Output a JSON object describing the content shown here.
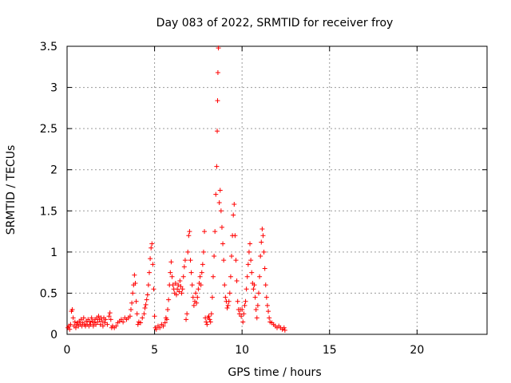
{
  "chart_data": {
    "type": "scatter",
    "title": "Day 083 of 2022, SRMTID for receiver froy",
    "xlabel": "GPS time / hours",
    "ylabel": "SRMTID / TECUs",
    "xlim": [
      0,
      24
    ],
    "ylim": [
      0,
      3.5
    ],
    "grid": true,
    "marker": "+",
    "x_ticks": [
      {
        "value": 0,
        "label": "0"
      },
      {
        "value": 5,
        "label": "5"
      },
      {
        "value": 10,
        "label": "10"
      },
      {
        "value": 15,
        "label": "15"
      },
      {
        "value": 20,
        "label": "20"
      }
    ],
    "y_ticks": [
      {
        "value": 0,
        "label": "0"
      },
      {
        "value": 0.5,
        "label": "0.5"
      },
      {
        "value": 1,
        "label": "1"
      },
      {
        "value": 1.5,
        "label": "1.5"
      },
      {
        "value": 2,
        "label": "2"
      },
      {
        "value": 2.5,
        "label": "2.5"
      },
      {
        "value": 3,
        "label": "3"
      },
      {
        "value": 3.5,
        "label": "3.5"
      }
    ],
    "series": [
      {
        "name": "SRMTID",
        "color": "#ff0000",
        "points": [
          [
            0.05,
            0.08
          ],
          [
            0.1,
            0.1
          ],
          [
            0.15,
            0.06
          ],
          [
            0.2,
            0.12
          ],
          [
            0.25,
            0.28
          ],
          [
            0.3,
            0.3
          ],
          [
            0.35,
            0.2
          ],
          [
            0.4,
            0.1
          ],
          [
            0.45,
            0.15
          ],
          [
            0.5,
            0.08
          ],
          [
            0.55,
            0.12
          ],
          [
            0.6,
            0.14
          ],
          [
            0.65,
            0.1
          ],
          [
            0.7,
            0.16
          ],
          [
            0.75,
            0.12
          ],
          [
            0.8,
            0.18
          ],
          [
            0.85,
            0.1
          ],
          [
            0.9,
            0.14
          ],
          [
            0.95,
            0.2
          ],
          [
            1.0,
            0.12
          ],
          [
            1.05,
            0.1
          ],
          [
            1.1,
            0.16
          ],
          [
            1.15,
            0.12
          ],
          [
            1.2,
            0.18
          ],
          [
            1.25,
            0.1
          ],
          [
            1.3,
            0.15
          ],
          [
            1.35,
            0.12
          ],
          [
            1.4,
            0.2
          ],
          [
            1.45,
            0.16
          ],
          [
            1.5,
            0.1
          ],
          [
            1.55,
            0.14
          ],
          [
            1.6,
            0.18
          ],
          [
            1.65,
            0.12
          ],
          [
            1.7,
            0.2
          ],
          [
            1.75,
            0.15
          ],
          [
            1.8,
            0.22
          ],
          [
            1.85,
            0.18
          ],
          [
            1.9,
            0.12
          ],
          [
            1.95,
            0.2
          ],
          [
            2.0,
            0.16
          ],
          [
            2.05,
            0.1
          ],
          [
            2.1,
            0.2
          ],
          [
            2.15,
            0.14
          ],
          [
            2.2,
            0.18
          ],
          [
            2.3,
            0.12
          ],
          [
            2.4,
            0.22
          ],
          [
            2.45,
            0.26
          ],
          [
            2.5,
            0.18
          ],
          [
            2.55,
            0.08
          ],
          [
            2.6,
            0.1
          ],
          [
            2.7,
            0.08
          ],
          [
            2.8,
            0.1
          ],
          [
            2.9,
            0.14
          ],
          [
            3.0,
            0.16
          ],
          [
            3.1,
            0.18
          ],
          [
            3.2,
            0.15
          ],
          [
            3.3,
            0.2
          ],
          [
            3.4,
            0.18
          ],
          [
            3.5,
            0.2
          ],
          [
            3.6,
            0.22
          ],
          [
            3.65,
            0.3
          ],
          [
            3.7,
            0.38
          ],
          [
            3.75,
            0.5
          ],
          [
            3.8,
            0.6
          ],
          [
            3.85,
            0.72
          ],
          [
            3.9,
            0.62
          ],
          [
            3.95,
            0.4
          ],
          [
            4.0,
            0.25
          ],
          [
            4.05,
            0.12
          ],
          [
            4.1,
            0.15
          ],
          [
            4.2,
            0.14
          ],
          [
            4.3,
            0.2
          ],
          [
            4.4,
            0.25
          ],
          [
            4.45,
            0.32
          ],
          [
            4.5,
            0.36
          ],
          [
            4.55,
            0.42
          ],
          [
            4.6,
            0.48
          ],
          [
            4.65,
            0.6
          ],
          [
            4.7,
            0.75
          ],
          [
            4.75,
            0.92
          ],
          [
            4.8,
            1.05
          ],
          [
            4.85,
            1.1
          ],
          [
            4.9,
            0.85
          ],
          [
            4.95,
            0.55
          ],
          [
            5.0,
            0.22
          ],
          [
            5.05,
            0.08
          ],
          [
            5.1,
            0.06
          ],
          [
            5.2,
            0.1
          ],
          [
            5.3,
            0.08
          ],
          [
            5.4,
            0.12
          ],
          [
            5.5,
            0.1
          ],
          [
            5.6,
            0.14
          ],
          [
            5.65,
            0.2
          ],
          [
            5.7,
            0.18
          ],
          [
            5.75,
            0.3
          ],
          [
            5.8,
            0.42
          ],
          [
            5.85,
            0.6
          ],
          [
            5.9,
            0.75
          ],
          [
            5.95,
            0.88
          ],
          [
            6.0,
            0.7
          ],
          [
            6.05,
            0.6
          ],
          [
            6.1,
            0.55
          ],
          [
            6.15,
            0.5
          ],
          [
            6.2,
            0.62
          ],
          [
            6.25,
            0.48
          ],
          [
            6.3,
            0.55
          ],
          [
            6.35,
            0.6
          ],
          [
            6.4,
            0.52
          ],
          [
            6.45,
            0.65
          ],
          [
            6.5,
            0.58
          ],
          [
            6.55,
            0.5
          ],
          [
            6.6,
            0.55
          ],
          [
            6.65,
            0.7
          ],
          [
            6.7,
            0.82
          ],
          [
            6.75,
            0.9
          ],
          [
            6.8,
            0.18
          ],
          [
            6.85,
            0.25
          ],
          [
            6.9,
            1.0
          ],
          [
            6.95,
            1.2
          ],
          [
            7.0,
            1.25
          ],
          [
            7.05,
            0.9
          ],
          [
            7.1,
            0.75
          ],
          [
            7.15,
            0.6
          ],
          [
            7.2,
            0.45
          ],
          [
            7.25,
            0.35
          ],
          [
            7.3,
            0.4
          ],
          [
            7.35,
            0.5
          ],
          [
            7.4,
            0.38
          ],
          [
            7.45,
            0.45
          ],
          [
            7.5,
            0.55
          ],
          [
            7.55,
            0.62
          ],
          [
            7.6,
            0.7
          ],
          [
            7.65,
            0.6
          ],
          [
            7.7,
            0.75
          ],
          [
            7.75,
            0.85
          ],
          [
            7.8,
            1.0
          ],
          [
            7.85,
            1.25
          ],
          [
            7.9,
            0.2
          ],
          [
            7.95,
            0.15
          ],
          [
            8.0,
            0.12
          ],
          [
            8.05,
            0.2
          ],
          [
            8.1,
            0.22
          ],
          [
            8.15,
            0.18
          ],
          [
            8.2,
            0.15
          ],
          [
            8.25,
            0.25
          ],
          [
            8.3,
            0.45
          ],
          [
            8.35,
            0.7
          ],
          [
            8.4,
            0.95
          ],
          [
            8.45,
            1.25
          ],
          [
            8.5,
            1.7
          ],
          [
            8.55,
            2.04
          ],
          [
            8.58,
            2.47
          ],
          [
            8.6,
            2.84
          ],
          [
            8.62,
            3.18
          ],
          [
            8.65,
            3.48
          ],
          [
            8.7,
            1.6
          ],
          [
            8.75,
            1.75
          ],
          [
            8.8,
            1.5
          ],
          [
            8.85,
            1.3
          ],
          [
            8.9,
            1.1
          ],
          [
            8.95,
            0.9
          ],
          [
            9.0,
            0.6
          ],
          [
            9.05,
            0.45
          ],
          [
            9.1,
            0.4
          ],
          [
            9.15,
            0.32
          ],
          [
            9.2,
            0.35
          ],
          [
            9.25,
            0.4
          ],
          [
            9.3,
            0.5
          ],
          [
            9.35,
            0.7
          ],
          [
            9.4,
            0.95
          ],
          [
            9.45,
            1.2
          ],
          [
            9.5,
            1.45
          ],
          [
            9.55,
            1.58
          ],
          [
            9.6,
            1.2
          ],
          [
            9.65,
            0.9
          ],
          [
            9.7,
            0.65
          ],
          [
            9.75,
            0.4
          ],
          [
            9.8,
            0.3
          ],
          [
            9.85,
            0.25
          ],
          [
            9.9,
            0.3
          ],
          [
            9.95,
            0.22
          ],
          [
            10.0,
            0.3
          ],
          [
            10.05,
            0.15
          ],
          [
            10.1,
            0.25
          ],
          [
            10.15,
            0.35
          ],
          [
            10.2,
            0.4
          ],
          [
            10.25,
            0.55
          ],
          [
            10.3,
            0.7
          ],
          [
            10.35,
            0.85
          ],
          [
            10.4,
            1.0
          ],
          [
            10.45,
            1.1
          ],
          [
            10.5,
            0.9
          ],
          [
            10.55,
            0.75
          ],
          [
            10.6,
            0.62
          ],
          [
            10.65,
            0.55
          ],
          [
            10.7,
            0.6
          ],
          [
            10.75,
            0.45
          ],
          [
            10.8,
            0.3
          ],
          [
            10.85,
            0.2
          ],
          [
            10.9,
            0.35
          ],
          [
            10.95,
            0.5
          ],
          [
            11.0,
            0.7
          ],
          [
            11.05,
            0.95
          ],
          [
            11.1,
            1.12
          ],
          [
            11.15,
            1.28
          ],
          [
            11.2,
            1.2
          ],
          [
            11.25,
            1.0
          ],
          [
            11.3,
            0.8
          ],
          [
            11.35,
            0.6
          ],
          [
            11.4,
            0.45
          ],
          [
            11.45,
            0.35
          ],
          [
            11.5,
            0.28
          ],
          [
            11.55,
            0.2
          ],
          [
            11.6,
            0.15
          ],
          [
            11.7,
            0.14
          ],
          [
            11.8,
            0.12
          ],
          [
            11.9,
            0.1
          ],
          [
            12.0,
            0.08
          ],
          [
            12.1,
            0.1
          ],
          [
            12.2,
            0.08
          ],
          [
            12.3,
            0.06
          ],
          [
            12.4,
            0.08
          ],
          [
            12.45,
            0.05
          ]
        ]
      }
    ]
  }
}
